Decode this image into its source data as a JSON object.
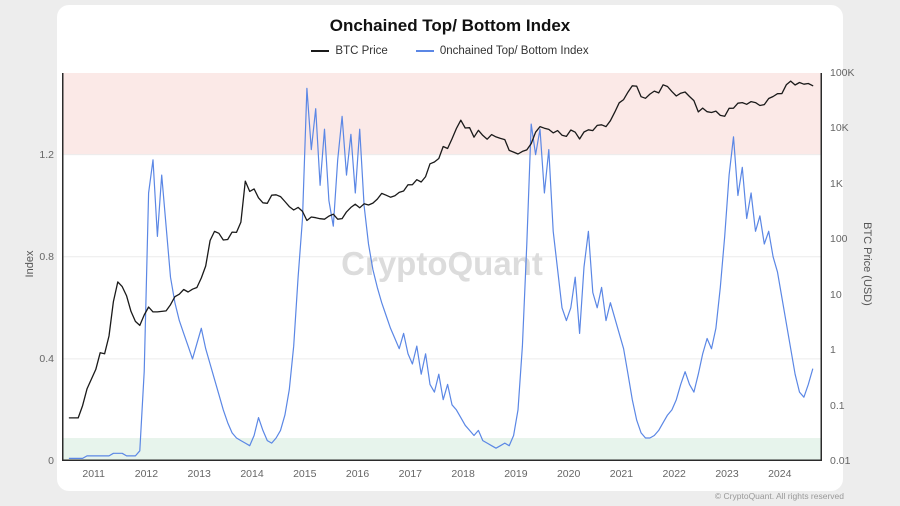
{
  "page": {
    "background": "#ededed",
    "card_background": "#ffffff"
  },
  "header": {
    "title": "Onchained Top/ Bottom Index"
  },
  "legend": [
    {
      "label": "BTC Price",
      "color": "#1a1a1a"
    },
    {
      "label": "0nchained Top/ Bottom Index",
      "color": "#5b87e5"
    }
  ],
  "watermark": "CryptoQuant",
  "footer": {
    "copyright": "© CryptoQuant. All rights reserved"
  },
  "chart_data": {
    "type": "line",
    "title": "Onchained Top/ Bottom Index",
    "x_unit": "decimal_year",
    "x_range": [
      2010.4,
      2024.8
    ],
    "x_ticks": [
      2011,
      2012,
      2013,
      2014,
      2015,
      2016,
      2017,
      2018,
      2019,
      2020,
      2021,
      2022,
      2023,
      2024
    ],
    "x_start": 2010.54,
    "x_step": 0.083333,
    "grid": "light-horizontal",
    "legend_position": "top-center",
    "left_axis": {
      "label": "Index",
      "scale": "linear",
      "range": [
        0,
        1.52
      ],
      "ticks": [
        0,
        0.4,
        0.8,
        1.2
      ]
    },
    "right_axis": {
      "label": "BTC Price (USD)",
      "scale": "log",
      "range": [
        0.01,
        100000
      ],
      "ticks": [
        {
          "v": 0.01,
          "label": "0.01"
        },
        {
          "v": 0.1,
          "label": "0.1"
        },
        {
          "v": 1,
          "label": "1"
        },
        {
          "v": 10,
          "label": "10"
        },
        {
          "v": 100,
          "label": "100"
        },
        {
          "v": 1000,
          "label": "1K"
        },
        {
          "v": 10000,
          "label": "10K"
        },
        {
          "v": 100000,
          "label": "100K"
        }
      ]
    },
    "bands": [
      {
        "name": "top-zone-band",
        "axis": "left",
        "from": 1.2,
        "to": 1.52,
        "color": "#fbe9e7"
      },
      {
        "name": "bottom-zone-band",
        "axis": "left",
        "from": 0,
        "to": 0.09,
        "color": "#e7f4ec"
      }
    ],
    "series": [
      {
        "name": "BTC Price",
        "axis": "right",
        "color": "#1a1a1a",
        "width": 1.3,
        "values": [
          0.06,
          0.06,
          0.06,
          0.1,
          0.2,
          0.3,
          0.45,
          0.9,
          0.86,
          1.8,
          7.5,
          17,
          14,
          9.5,
          5.0,
          3.3,
          2.8,
          4.3,
          6.0,
          4.9,
          4.9,
          5.0,
          5.1,
          6.6,
          9.2,
          10.2,
          12.4,
          11.2,
          12.6,
          13.5,
          20,
          33,
          95,
          139,
          128,
          97,
          99,
          135,
          133,
          204,
          1120,
          732,
          810,
          560,
          455,
          445,
          625,
          635,
          590,
          480,
          388,
          338,
          376,
          318,
          218,
          252,
          245,
          235,
          230,
          262,
          284,
          230,
          236,
          312,
          376,
          430,
          370,
          437,
          415,
          450,
          530,
          672,
          625,
          574,
          610,
          700,
          744,
          960,
          965,
          1190,
          1080,
          1350,
          2300,
          2480,
          2870,
          4730,
          4340,
          6470,
          9950,
          14100,
          10200,
          10300,
          6940,
          9240,
          7500,
          6400,
          7750,
          7030,
          6600,
          6300,
          4020,
          3740,
          3460,
          3850,
          4100,
          5320,
          8560,
          10800,
          10080,
          9590,
          8290,
          9150,
          7550,
          7190,
          9350,
          8540,
          6440,
          8620,
          9450,
          9140,
          11350,
          11650,
          10780,
          13800,
          19700,
          29000,
          33100,
          45200,
          58800,
          57750,
          37300,
          35000,
          41600,
          47100,
          43800,
          61300,
          57000,
          46200,
          38500,
          43200,
          45500,
          37700,
          31800,
          19900,
          23300,
          20050,
          19400,
          20500,
          17150,
          16550,
          23100,
          23150,
          28500,
          29250,
          27200,
          30480,
          29230,
          25940,
          26960,
          34670,
          37720,
          42280,
          42580,
          61200,
          71300,
          60640,
          67500,
          62680,
          64620,
          59100
        ]
      },
      {
        "name": "0nchained Top/ Bottom Index",
        "axis": "left",
        "color": "#5b87e5",
        "width": 1.2,
        "values": [
          0.01,
          0.01,
          0.01,
          0.01,
          0.02,
          0.02,
          0.02,
          0.02,
          0.02,
          0.02,
          0.03,
          0.03,
          0.03,
          0.02,
          0.02,
          0.02,
          0.04,
          0.35,
          1.05,
          1.18,
          0.88,
          1.12,
          0.92,
          0.72,
          0.62,
          0.55,
          0.5,
          0.45,
          0.4,
          0.46,
          0.52,
          0.44,
          0.38,
          0.32,
          0.26,
          0.2,
          0.15,
          0.11,
          0.09,
          0.08,
          0.07,
          0.06,
          0.1,
          0.17,
          0.12,
          0.08,
          0.07,
          0.09,
          0.12,
          0.18,
          0.28,
          0.45,
          0.72,
          0.95,
          1.46,
          1.22,
          1.38,
          1.08,
          1.3,
          1.02,
          0.92,
          1.18,
          1.35,
          1.12,
          1.28,
          1.05,
          1.3,
          1.0,
          0.85,
          0.75,
          0.68,
          0.62,
          0.57,
          0.52,
          0.48,
          0.44,
          0.5,
          0.42,
          0.38,
          0.45,
          0.34,
          0.42,
          0.3,
          0.27,
          0.34,
          0.24,
          0.3,
          0.22,
          0.2,
          0.17,
          0.14,
          0.12,
          0.1,
          0.12,
          0.08,
          0.07,
          0.06,
          0.05,
          0.06,
          0.07,
          0.06,
          0.1,
          0.2,
          0.45,
          0.85,
          1.32,
          1.2,
          1.3,
          1.05,
          1.22,
          0.9,
          0.75,
          0.6,
          0.55,
          0.6,
          0.72,
          0.5,
          0.76,
          0.9,
          0.66,
          0.6,
          0.68,
          0.55,
          0.62,
          0.56,
          0.5,
          0.44,
          0.34,
          0.24,
          0.16,
          0.11,
          0.09,
          0.09,
          0.1,
          0.12,
          0.15,
          0.18,
          0.2,
          0.24,
          0.3,
          0.35,
          0.3,
          0.27,
          0.34,
          0.42,
          0.48,
          0.44,
          0.52,
          0.68,
          0.88,
          1.12,
          1.27,
          1.04,
          1.15,
          0.95,
          1.05,
          0.9,
          0.96,
          0.85,
          0.9,
          0.8,
          0.74,
          0.64,
          0.54,
          0.44,
          0.34,
          0.27,
          0.25,
          0.3,
          0.36
        ]
      }
    ]
  }
}
